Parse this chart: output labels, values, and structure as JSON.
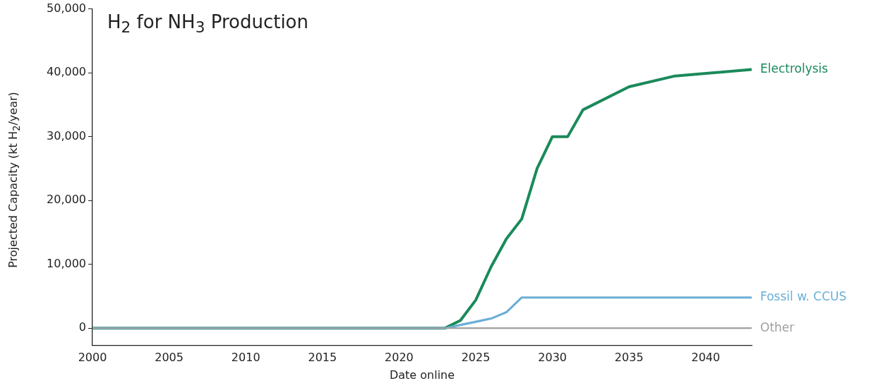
{
  "chart_data": {
    "type": "line",
    "title": "H$_{2}$ for NH$_{3}$ Production",
    "xlabel": "Date online",
    "ylabel": "Projected Capacity (kt H$_{2}$/year)",
    "xlim": [
      2000,
      2043
    ],
    "xticks": [
      2000,
      2005,
      2010,
      2015,
      2020,
      2025,
      2030,
      2035,
      2040
    ],
    "ylim": [
      -2700,
      50000
    ],
    "yticks": [
      {
        "value": 0,
        "label": "0"
      },
      {
        "value": 10000,
        "label": "10,000"
      },
      {
        "value": 20000,
        "label": "20,000"
      },
      {
        "value": 30000,
        "label": "30,000"
      },
      {
        "value": 40000,
        "label": "40,000"
      },
      {
        "value": 50000,
        "label": "50,000"
      }
    ],
    "grid": false,
    "legend": false,
    "marker": "none",
    "line_style": "solid",
    "series": [
      {
        "name": "Electrolysis",
        "color": "#1a8a5a",
        "x": [
          2000,
          2023,
          2024,
          2025,
          2026,
          2027,
          2028,
          2029,
          2030,
          2031,
          2032,
          2035,
          2038,
          2043
        ],
        "values": [
          0,
          0,
          1200,
          4400,
          9600,
          14000,
          17100,
          25000,
          30000,
          30000,
          34200,
          37800,
          39500,
          40500
        ]
      },
      {
        "name": "Fossil w. CCUS",
        "color": "#6baed6",
        "x": [
          2000,
          2023,
          2024,
          2025,
          2026,
          2027,
          2028,
          2043
        ],
        "values": [
          0,
          0,
          500,
          1000,
          1500,
          2500,
          4800,
          4800
        ]
      },
      {
        "name": "Other",
        "color": "#a0a0a0",
        "x": [
          2000,
          2043
        ],
        "values": [
          0,
          0
        ]
      }
    ]
  }
}
